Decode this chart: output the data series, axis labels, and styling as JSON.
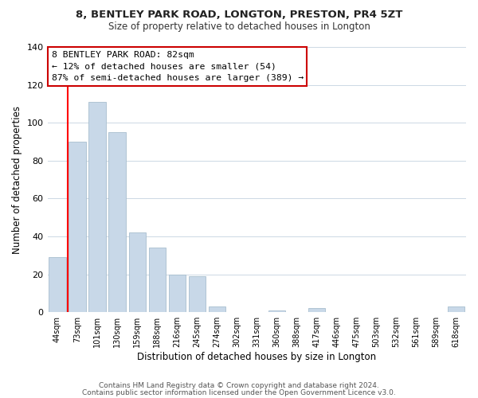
{
  "title": "8, BENTLEY PARK ROAD, LONGTON, PRESTON, PR4 5ZT",
  "subtitle": "Size of property relative to detached houses in Longton",
  "xlabel": "Distribution of detached houses by size in Longton",
  "ylabel": "Number of detached properties",
  "bar_labels": [
    "44sqm",
    "73sqm",
    "101sqm",
    "130sqm",
    "159sqm",
    "188sqm",
    "216sqm",
    "245sqm",
    "274sqm",
    "302sqm",
    "331sqm",
    "360sqm",
    "388sqm",
    "417sqm",
    "446sqm",
    "475sqm",
    "503sqm",
    "532sqm",
    "561sqm",
    "589sqm",
    "618sqm"
  ],
  "bar_heights": [
    29,
    90,
    111,
    95,
    42,
    34,
    20,
    19,
    3,
    0,
    0,
    1,
    0,
    2,
    0,
    0,
    0,
    0,
    0,
    0,
    3
  ],
  "bar_color": "#c8d8e8",
  "bar_edge_color": "#a8bece",
  "ylim": [
    0,
    140
  ],
  "yticks": [
    0,
    20,
    40,
    60,
    80,
    100,
    120,
    140
  ],
  "red_line_x": 0.5,
  "annotation_text": "8 BENTLEY PARK ROAD: 82sqm\n← 12% of detached houses are smaller (54)\n87% of semi-detached houses are larger (389) →",
  "footer_line1": "Contains HM Land Registry data © Crown copyright and database right 2024.",
  "footer_line2": "Contains public sector information licensed under the Open Government Licence v3.0.",
  "bg_color": "#ffffff",
  "grid_color": "#ccd8e4",
  "annotation_box_color": "#ffffff",
  "annotation_box_edge": "#cc0000",
  "figsize": [
    6.0,
    5.0
  ],
  "dpi": 100
}
